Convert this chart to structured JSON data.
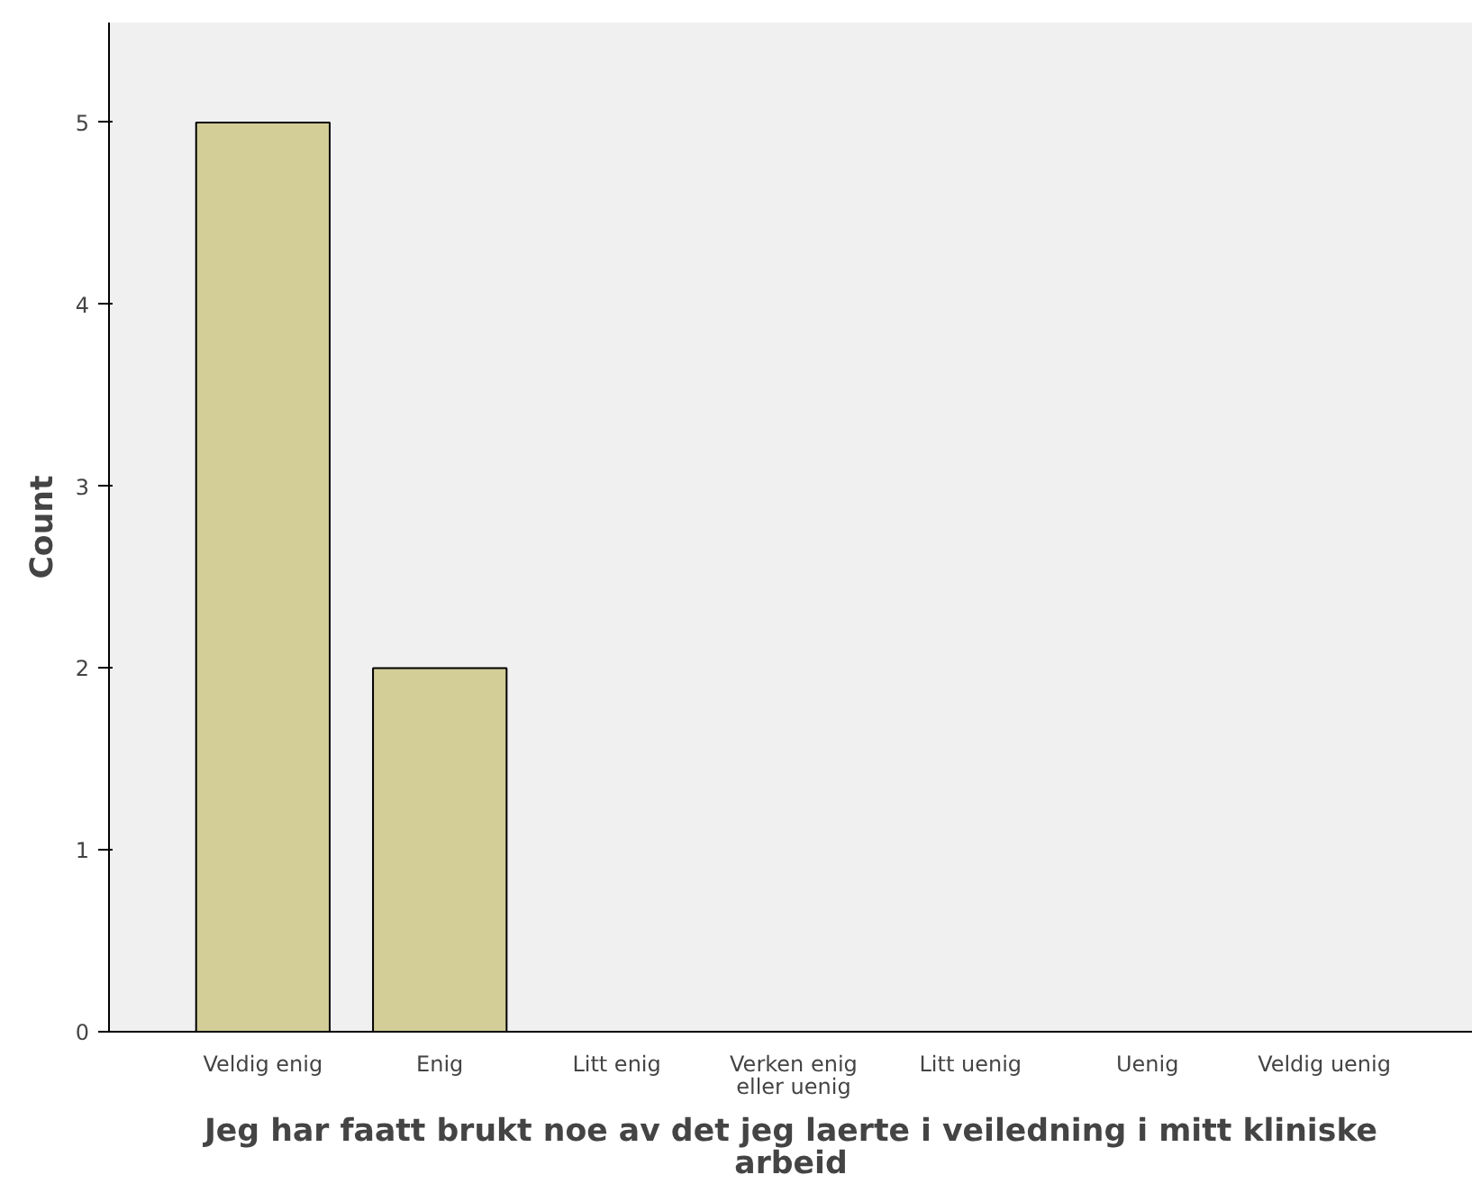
{
  "chart_data": {
    "type": "bar",
    "xlabel": "Jeg har faatt brukt noe av det jeg laerte i veiledning i mitt kliniske arbeid",
    "ylabel": "Count",
    "categories": [
      "Veldig enig",
      "Enig",
      "Litt enig",
      "Verken enig eller uenig",
      "Litt uenig",
      "Uenig",
      "Veldig uenig"
    ],
    "values": [
      5,
      2,
      0,
      0,
      0,
      0,
      0
    ],
    "color": "#d3ce98",
    "ylim": [
      0,
      5.55
    ],
    "yticks": [
      0,
      1,
      2,
      3,
      4,
      5
    ],
    "grid": false
  }
}
